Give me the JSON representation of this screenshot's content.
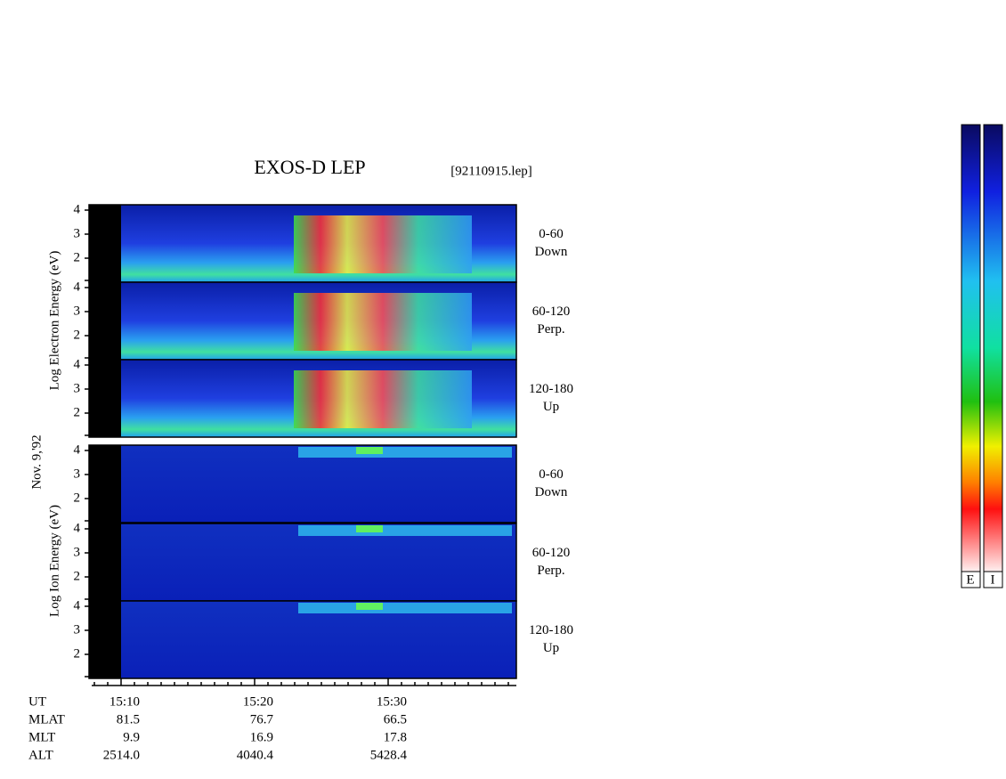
{
  "title": "EXOS-D LEP",
  "file": "[92110915.lep]",
  "date": "Nov. 9,'92",
  "electron_axis_label": "Log Electron Energy (eV)",
  "ion_axis_label": "Log Ion Energy (eV)",
  "panels": [
    {
      "species": "electron",
      "angle": "0-60",
      "direction": "Down",
      "yticks": [
        4,
        3,
        2
      ]
    },
    {
      "species": "electron",
      "angle": "60-120",
      "direction": "Perp.",
      "yticks": [
        4,
        3,
        2
      ]
    },
    {
      "species": "electron",
      "angle": "120-180",
      "direction": "Up",
      "yticks": [
        4,
        3,
        2
      ]
    },
    {
      "species": "ion",
      "angle": "0-60",
      "direction": "Down",
      "yticks": [
        4,
        3,
        2
      ]
    },
    {
      "species": "ion",
      "angle": "60-120",
      "direction": "Perp.",
      "yticks": [
        4,
        3,
        2
      ]
    },
    {
      "species": "ion",
      "angle": "120-180",
      "direction": "Up",
      "yticks": [
        4,
        3,
        2
      ]
    }
  ],
  "orbit": [
    {
      "label": "UT",
      "values": [
        "15:10",
        "15:20",
        "15:30"
      ]
    },
    {
      "label": "MLAT",
      "values": [
        "81.5",
        "76.7",
        "66.5"
      ]
    },
    {
      "label": "MLT",
      "values": [
        "9.9",
        "16.9",
        "17.8"
      ]
    },
    {
      "label": "ALT",
      "values": [
        "2514.0",
        "4040.4",
        "5428.4"
      ]
    }
  ],
  "colorbar_labels": [
    "E",
    "I"
  ]
}
